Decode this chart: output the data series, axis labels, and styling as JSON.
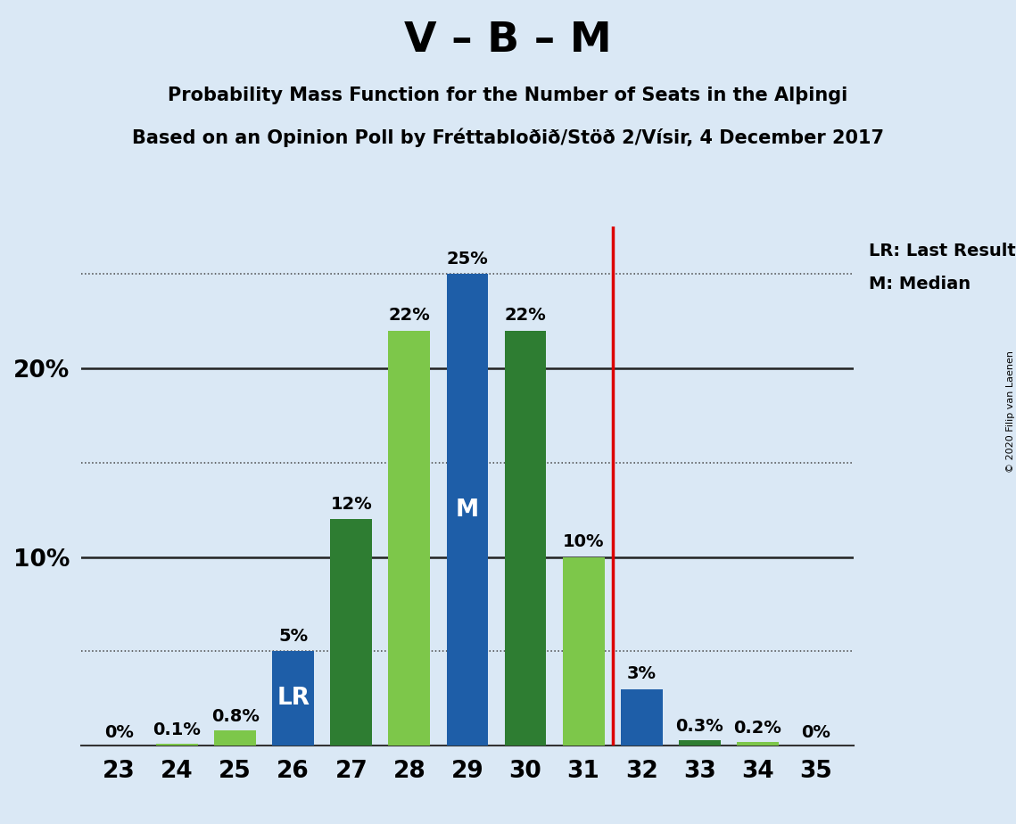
{
  "title": "V – B – M",
  "subtitle1": "Probability Mass Function for the Number of Seats in the Alþingi",
  "subtitle2": "Based on an Opinion Poll by Fréttabloðið/Stöð 2/Vísir, 4 December 2017",
  "copyright": "© 2020 Filip van Laenen",
  "seats": [
    23,
    24,
    25,
    26,
    27,
    28,
    29,
    30,
    31,
    32,
    33,
    34,
    35
  ],
  "values": [
    0.0,
    0.1,
    0.8,
    5.0,
    12.0,
    22.0,
    25.0,
    22.0,
    10.0,
    3.0,
    0.3,
    0.2,
    0.0
  ],
  "colors": [
    "#7dc74a",
    "#7dc74a",
    "#7dc74a",
    "#1e5ea8",
    "#2e7d32",
    "#7dc74a",
    "#1e5ea8",
    "#2e7d32",
    "#7dc74a",
    "#1e5ea8",
    "#2e7d32",
    "#7dc74a",
    "#2e7d32"
  ],
  "bar_labels": [
    "0%",
    "0.1%",
    "0.8%",
    "5%",
    "12%",
    "22%",
    "25%",
    "22%",
    "10%",
    "3%",
    "0.3%",
    "0.2%",
    "0%"
  ],
  "inside_labels": {
    "26": "LR",
    "29": "M"
  },
  "vline_x": 31.5,
  "vline_color": "#dd0000",
  "background_color": "#dae8f5",
  "bar_width": 0.72,
  "ylim_max": 27.5,
  "ytick_positions": [
    10,
    20
  ],
  "ytick_labels": [
    "10%",
    "20%"
  ],
  "dotted_lines": [
    5,
    15,
    25
  ],
  "solid_lines": [
    10,
    20
  ],
  "legend_lr": "LR: Last Result",
  "legend_m": "M: Median",
  "title_fontsize": 34,
  "subtitle_fontsize": 15,
  "bar_label_fontsize": 14,
  "inside_label_fontsize": 19,
  "axis_tick_fontsize": 19,
  "legend_fontsize": 14,
  "copyright_fontsize": 8
}
